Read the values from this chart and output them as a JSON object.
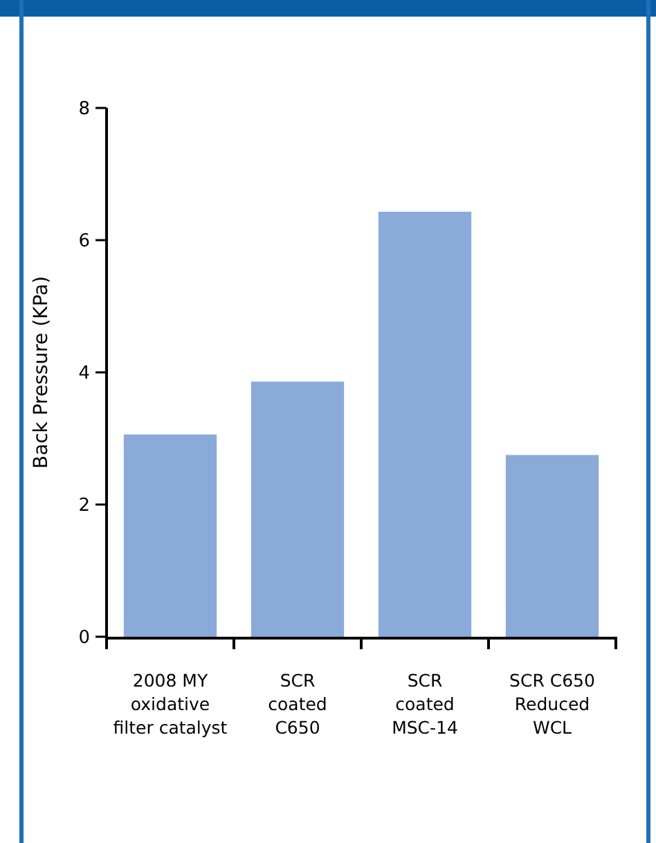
{
  "chart_data": {
    "type": "bar",
    "ylabel": "Back Pressure (KPa)",
    "categories": [
      "2008 MY\noxidative\nfilter catalyst",
      "SCR\ncoated\nC650",
      "SCR\ncoated\nMSC-14",
      "SCR C650\nReduced\nWCL"
    ],
    "values": [
      3.06,
      3.86,
      6.43,
      2.75
    ],
    "color": "#8aaad8",
    "ylim": [
      0,
      8
    ],
    "yticks": [
      0,
      2,
      4,
      6,
      8
    ],
    "grid": false
  }
}
